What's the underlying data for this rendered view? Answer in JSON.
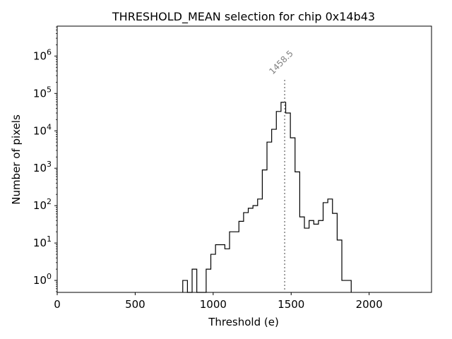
{
  "chart_data": {
    "type": "histogram",
    "title": "THRESHOLD_MEAN selection for chip 0x14b43",
    "xlabel": "Threshold (e)",
    "ylabel": "Number of pixels",
    "xlim": [
      0,
      2400
    ],
    "ylim_log10": [
      -0.32,
      6.8
    ],
    "yscale": "log",
    "x_ticks": [
      0,
      500,
      1000,
      1500,
      2000
    ],
    "x_tick_labels": [
      "0",
      "500",
      "1000",
      "1500",
      "2000"
    ],
    "y_tick_exponents": [
      0,
      1,
      2,
      3,
      4,
      5,
      6
    ],
    "y_tick_labels": [
      {
        "base": "10",
        "exp": "0"
      },
      {
        "base": "10",
        "exp": "1"
      },
      {
        "base": "10",
        "exp": "2"
      },
      {
        "base": "10",
        "exp": "3"
      },
      {
        "base": "10",
        "exp": "4"
      },
      {
        "base": "10",
        "exp": "5"
      },
      {
        "base": "10",
        "exp": "6"
      }
    ],
    "bin_edges": [
      805,
      835,
      865,
      895,
      925,
      955,
      985,
      1015,
      1045,
      1075,
      1105,
      1135,
      1165,
      1195,
      1225,
      1255,
      1285,
      1315,
      1345,
      1375,
      1405,
      1435,
      1465,
      1495,
      1525,
      1555,
      1585,
      1615,
      1645,
      1675,
      1705,
      1735,
      1765,
      1795,
      1825,
      1855,
      1885
    ],
    "counts": [
      1,
      0,
      2,
      0,
      0,
      2,
      5,
      9,
      9,
      7,
      20,
      20,
      38,
      65,
      85,
      100,
      150,
      900,
      5000,
      11000,
      33000,
      58000,
      30000,
      6500,
      800,
      50,
      25,
      40,
      32,
      40,
      120,
      150,
      62,
      12,
      1,
      1
    ],
    "vline": {
      "x": 1458.5,
      "label": "1458.5",
      "style": "dotted",
      "color": "#808080"
    }
  }
}
